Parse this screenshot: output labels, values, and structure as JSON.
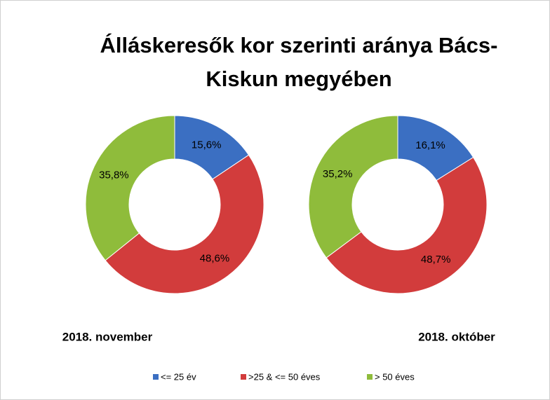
{
  "title": "Álláskeresők kor szerinti aránya Bács-Kiskun megyében",
  "chart_data": [
    {
      "type": "donut",
      "subtitle": "2018. november",
      "categories": [
        "<= 25 év",
        ">25 & <= 50 éves",
        "> 50 éves"
      ],
      "colors": [
        "#3b6fc2",
        "#d23c3c",
        "#8fbc3b"
      ],
      "values": [
        15.6,
        48.6,
        35.8
      ],
      "value_labels": [
        "15,6%",
        "48,6%",
        "35,8%"
      ]
    },
    {
      "type": "donut",
      "subtitle": "2018. október",
      "categories": [
        "<= 25 év",
        ">25 & <= 50 éves",
        "> 50 éves"
      ],
      "colors": [
        "#3b6fc2",
        "#d23c3c",
        "#8fbc3b"
      ],
      "values": [
        16.1,
        48.7,
        35.2
      ],
      "value_labels": [
        "16,1%",
        "48,7%",
        "35,2%"
      ]
    }
  ]
}
